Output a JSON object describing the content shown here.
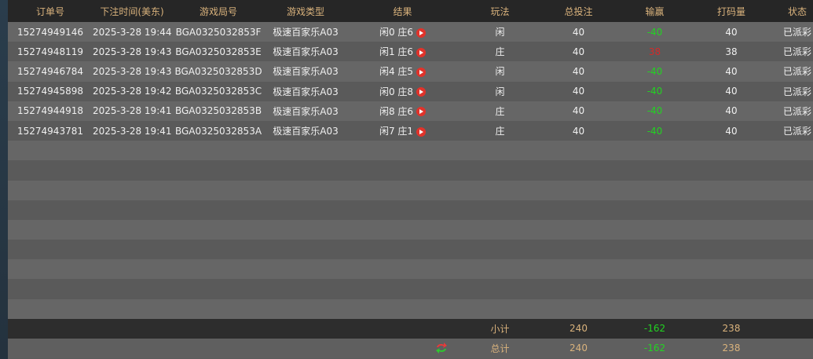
{
  "headers": [
    "订单号",
    "下注时间(美东)",
    "游戏局号",
    "游戏类型",
    "结果",
    "玩法",
    "总投注",
    "输赢",
    "打码量",
    "状态"
  ],
  "rows": [
    {
      "order": "15274949146",
      "time": "2025-3-28 19:44",
      "round": "BGA0325032853F",
      "game": "极速百家乐A03",
      "result": "闲0 庄6",
      "play": "闲",
      "bet": "40",
      "winloss": "-40",
      "turnover": "40",
      "status": "已派彩"
    },
    {
      "order": "15274948119",
      "time": "2025-3-28 19:43",
      "round": "BGA0325032853E",
      "game": "极速百家乐A03",
      "result": "闲1 庄6",
      "play": "庄",
      "bet": "40",
      "winloss": "38",
      "turnover": "38",
      "status": "已派彩"
    },
    {
      "order": "15274946784",
      "time": "2025-3-28 19:43",
      "round": "BGA0325032853D",
      "game": "极速百家乐A03",
      "result": "闲4 庄5",
      "play": "闲",
      "bet": "40",
      "winloss": "-40",
      "turnover": "40",
      "status": "已派彩"
    },
    {
      "order": "15274945898",
      "time": "2025-3-28 19:42",
      "round": "BGA0325032853C",
      "game": "极速百家乐A03",
      "result": "闲0 庄8",
      "play": "闲",
      "bet": "40",
      "winloss": "-40",
      "turnover": "40",
      "status": "已派彩"
    },
    {
      "order": "15274944918",
      "time": "2025-3-28 19:41",
      "round": "BGA0325032853B",
      "game": "极速百家乐A03",
      "result": "闲8 庄6",
      "play": "庄",
      "bet": "40",
      "winloss": "-40",
      "turnover": "40",
      "status": "已派彩"
    },
    {
      "order": "15274943781",
      "time": "2025-3-28 19:41",
      "round": "BGA0325032853A",
      "game": "极速百家乐A03",
      "result": "闲7 庄1",
      "play": "庄",
      "bet": "40",
      "winloss": "-40",
      "turnover": "40",
      "status": "已派彩"
    }
  ],
  "subtotal": {
    "label": "小计",
    "bet": "240",
    "winloss": "-162",
    "turnover": "238"
  },
  "total": {
    "label": "总计",
    "bet": "240",
    "winloss": "-162",
    "turnover": "238"
  },
  "colors": {
    "header_text": "#d9b27c",
    "loss": "#22d322",
    "win": "#d42a2a",
    "play_icon": "#e0332b"
  },
  "icons": {
    "result": "play-video-icon",
    "refresh": "refresh-icon"
  }
}
